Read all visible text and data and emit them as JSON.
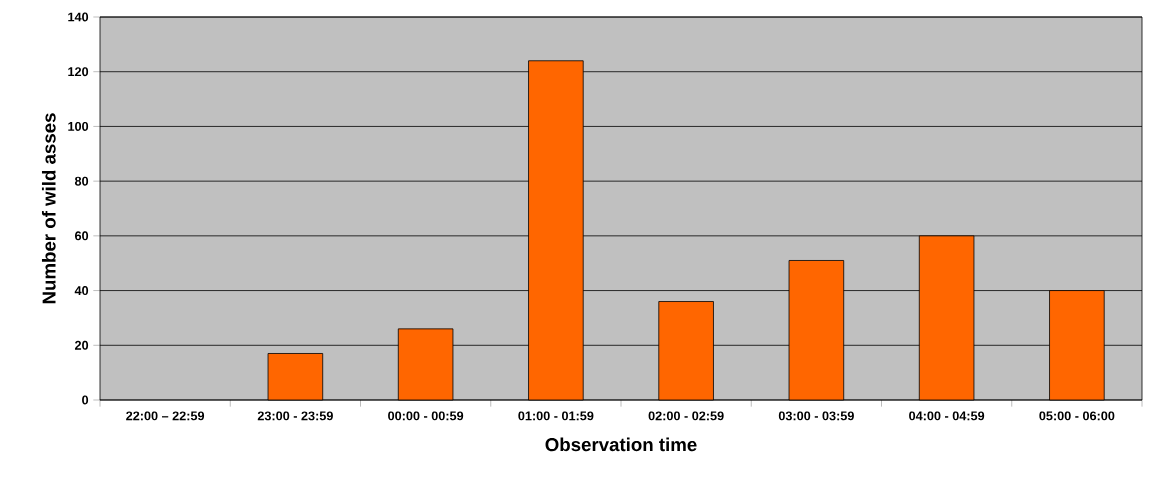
{
  "chart_data": {
    "type": "bar",
    "xlabel": "Observation time",
    "ylabel": "Number of wild asses",
    "categories": [
      "22:00 – 22:59",
      "23:00 - 23:59",
      "00:00 - 00:59",
      "01:00 - 01:59",
      "02:00 - 02:59",
      "03:00 - 03:59",
      "04:00 - 04:59",
      "05:00 - 06:00"
    ],
    "values": [
      0,
      17,
      26,
      124,
      36,
      51,
      60,
      40
    ],
    "color": "#ff6600",
    "ylim": [
      0,
      140
    ],
    "yticks": [
      0,
      20,
      40,
      60,
      80,
      100,
      120,
      140
    ],
    "grid": "y"
  }
}
